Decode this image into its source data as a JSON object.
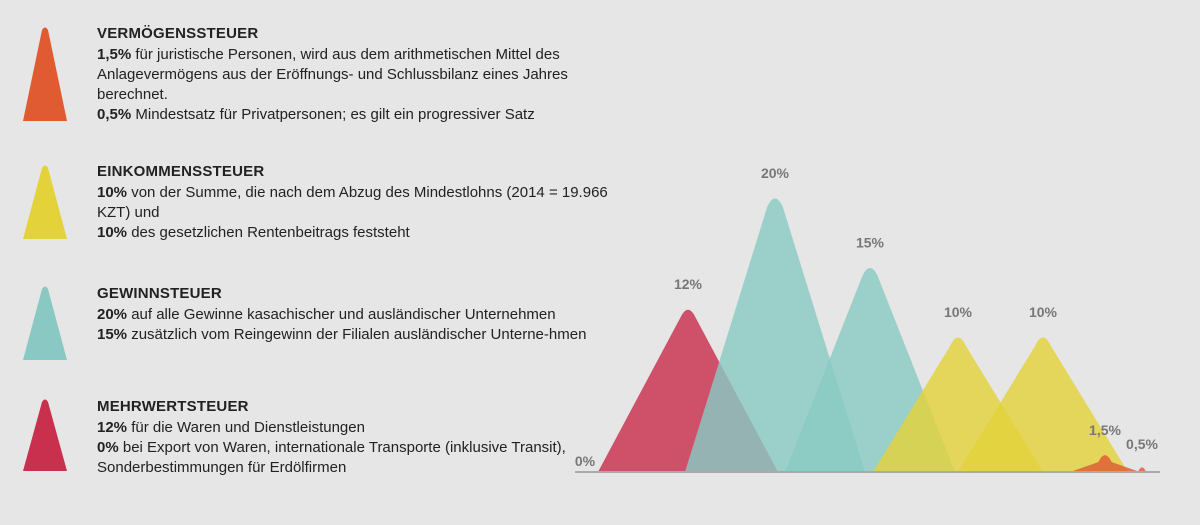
{
  "colors": {
    "vermoegen": "#e05a32",
    "einkommen": "#e3d23a",
    "gewinn": "#8ac9c3",
    "mehrwert": "#c8304d",
    "background": "#e6e6e6",
    "label": "#777777",
    "baseline": "#aaaaaa"
  },
  "legend": [
    {
      "key": "vermoegen",
      "icon": "orange-triangle-icon",
      "title": "VERMÖGENSSTEUER",
      "lines": [
        {
          "bold": "1,5%",
          "text": " für juristische Personen, wird aus dem arithmetischen Mittel des Anlagevermögens aus der Eröffnungs- und Schlussbilanz eines Jahres berechnet."
        },
        {
          "bold": "0,5%",
          "text": " Mindestsatz für Privatpersonen; es gilt ein progressiver Satz"
        }
      ]
    },
    {
      "key": "einkommen",
      "icon": "yellow-triangle-icon",
      "title": "EINKOMMENSSTEUER",
      "lines": [
        {
          "bold": "10%",
          "text": " von der Summe, die nach dem Abzug des Mindestlohns (2014 = 19.966 KZT) und"
        },
        {
          "bold": "10%",
          "text": " des gesetzlichen Rentenbeitrags feststeht"
        }
      ]
    },
    {
      "key": "gewinn",
      "icon": "teal-triangle-icon",
      "title": "GEWINNSTEUER",
      "lines": [
        {
          "bold": "20%",
          "text": " auf alle Gewinne kasachischer und ausländischer Unternehmen"
        },
        {
          "bold": "15%",
          "text": " zusätzlich vom Reingewinn der Filialen ausländischer Unterne-hmen"
        }
      ]
    },
    {
      "key": "mehrwert",
      "icon": "red-triangle-icon",
      "title": "MEHRWERTSTEUER",
      "lines": [
        {
          "bold": "12%",
          "text": " für die Waren und Dienstleistungen"
        },
        {
          "bold": "0%",
          "text": " bei Export von Waren, internationale Transporte (inklusive Transit), Sonderbestimmungen für Erdölfirmen"
        }
      ]
    }
  ],
  "chart_data": {
    "type": "area",
    "shape": "rounded-triangle peaks",
    "ylim": [
      0,
      20
    ],
    "grid": false,
    "peaks": [
      {
        "label": "0%",
        "value": 0,
        "category": "mehrwert"
      },
      {
        "label": "12%",
        "value": 12,
        "category": "mehrwert"
      },
      {
        "label": "20%",
        "value": 20,
        "category": "gewinn"
      },
      {
        "label": "15%",
        "value": 15,
        "category": "gewinn"
      },
      {
        "label": "10%",
        "value": 10,
        "category": "einkommen"
      },
      {
        "label": "10%",
        "value": 10,
        "category": "einkommen"
      },
      {
        "label": "1,5%",
        "value": 1.5,
        "category": "vermoegen"
      },
      {
        "label": "0,5%",
        "value": 0.5,
        "category": "vermoegen"
      }
    ]
  }
}
